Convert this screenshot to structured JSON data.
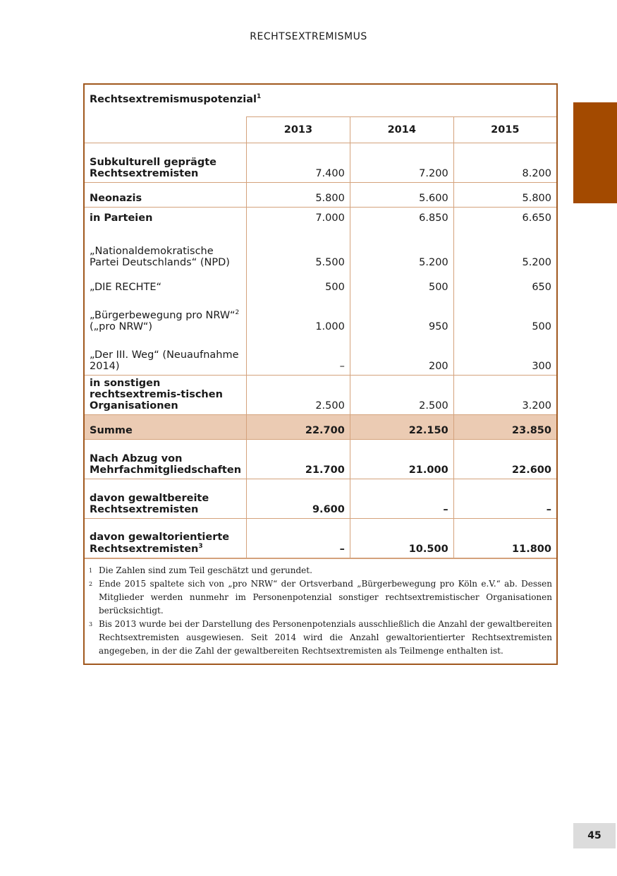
{
  "running_header": "RECHTSEXTREMISMUS",
  "page_number": "45",
  "accent_color": "#a34a00",
  "table": {
    "title": "Rechtsextremismuspotenzial",
    "title_note": "1",
    "years": [
      "2013",
      "2014",
      "2015"
    ],
    "rows": [
      {
        "label": "Subkulturell geprägte Rechtsextremisten",
        "values": [
          "7.400",
          "7.200",
          "8.200"
        ]
      },
      {
        "label": "Neonazis",
        "values": [
          "5.800",
          "5.600",
          "5.800"
        ]
      },
      {
        "label": "in Parteien",
        "values": [
          "7.000",
          "6.850",
          "6.650"
        ]
      },
      {
        "label": "„Nationaldemokratische Partei Deutschlands“ (NPD)",
        "values": [
          "5.500",
          "5.200",
          "5.200"
        ]
      },
      {
        "label": "„DIE RECHTE“",
        "values": [
          "500",
          "500",
          "650"
        ]
      },
      {
        "label": "„Bürgerbewegung pro NRW“",
        "note": "2",
        "label2": "(„pro NRW“)",
        "values": [
          "1.000",
          "950",
          "500"
        ]
      },
      {
        "label": "„Der III. Weg“ (Neuaufnahme 2014)",
        "values": [
          "–",
          "200",
          "300"
        ]
      },
      {
        "label": "in sonstigen rechtsextremis-tischen Organisationen",
        "values": [
          "2.500",
          "2.500",
          "3.200"
        ]
      },
      {
        "label": "Summe",
        "values": [
          "22.700",
          "22.150",
          "23.850"
        ]
      },
      {
        "label": "Nach Abzug von Mehrfachmitgliedschaften",
        "values": [
          "21.700",
          "21.000",
          "22.600"
        ]
      },
      {
        "label": "davon gewaltbereite Rechtsextremisten",
        "values": [
          "9.600",
          "–",
          "–"
        ]
      },
      {
        "label": "davon gewaltorientierte Rechtsextremisten",
        "note": "3",
        "values": [
          "–",
          "10.500",
          "11.800"
        ]
      }
    ],
    "footnotes": [
      {
        "mark": "1",
        "text": "Die Zahlen sind zum Teil geschätzt und gerundet."
      },
      {
        "mark": "2",
        "text": "Ende 2015 spaltete sich von „pro NRW“ der Ortsverband „Bürgerbewegung pro Köln e.V.“ ab. Dessen Mitglieder werden nunmehr im Personenpotenzial sonstiger rechtsextremistischer Organisationen berücksichtigt."
      },
      {
        "mark": "3",
        "text": "Bis 2013 wurde bei der Darstellung des Personenpotenzials ausschließlich die Anzahl der gewaltbereiten Rechtsextremisten ausgewiesen. Seit 2014 wird die Anzahl gewaltorientierter Rechtsextremisten angegeben, in der die Zahl der gewaltbereiten Rechtsextremisten als Teilmenge enthalten ist."
      }
    ]
  }
}
